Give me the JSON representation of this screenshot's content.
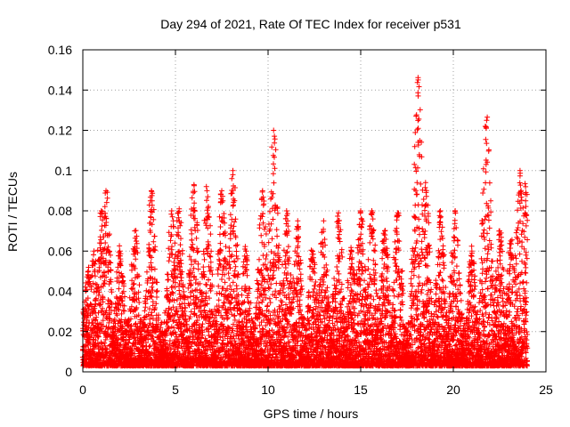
{
  "chart_data": {
    "type": "scatter",
    "title": "Day 294 of 2021, Rate Of TEC Index for receiver p531",
    "xlabel": "GPS time / hours",
    "ylabel": "ROTI / TECUs",
    "xlim": [
      0,
      25
    ],
    "ylim": [
      0,
      0.16
    ],
    "x_ticks": [
      0,
      5,
      10,
      15,
      20,
      25
    ],
    "x_tick_labels": [
      "0",
      "5",
      "10",
      "15",
      "20",
      "25"
    ],
    "y_ticks": [
      0,
      0.02,
      0.04,
      0.06,
      0.08,
      0.1,
      0.12,
      0.14,
      0.16
    ],
    "y_tick_labels": [
      "0",
      "0.02",
      "0.04",
      "0.06",
      "0.08",
      "0.1",
      "0.12",
      "0.14",
      "0.16"
    ],
    "grid": true,
    "legend": "none",
    "marker": "plus",
    "series_color": "#ff0000",
    "series": [
      {
        "x_range": [
          0,
          24
        ],
        "sample_interval_hours": 0.00833,
        "typical_range": [
          0.003,
          0.03
        ],
        "peaks": [
          {
            "x": 0.3,
            "y": 0.05
          },
          {
            "x": 0.6,
            "y": 0.06
          },
          {
            "x": 1.0,
            "y": 0.08
          },
          {
            "x": 1.25,
            "y": 0.09
          },
          {
            "x": 2.0,
            "y": 0.06
          },
          {
            "x": 2.8,
            "y": 0.07
          },
          {
            "x": 3.7,
            "y": 0.09
          },
          {
            "x": 4.8,
            "y": 0.08
          },
          {
            "x": 5.2,
            "y": 0.081
          },
          {
            "x": 6.0,
            "y": 0.093
          },
          {
            "x": 6.7,
            "y": 0.09
          },
          {
            "x": 7.5,
            "y": 0.09
          },
          {
            "x": 8.1,
            "y": 0.1
          },
          {
            "x": 8.8,
            "y": 0.06
          },
          {
            "x": 9.7,
            "y": 0.09
          },
          {
            "x": 10.3,
            "y": 0.12
          },
          {
            "x": 11.0,
            "y": 0.08
          },
          {
            "x": 11.6,
            "y": 0.075
          },
          {
            "x": 12.4,
            "y": 0.06
          },
          {
            "x": 13.0,
            "y": 0.075
          },
          {
            "x": 13.8,
            "y": 0.079
          },
          {
            "x": 14.5,
            "y": 0.06
          },
          {
            "x": 15.0,
            "y": 0.08
          },
          {
            "x": 15.6,
            "y": 0.08
          },
          {
            "x": 16.3,
            "y": 0.07
          },
          {
            "x": 17.0,
            "y": 0.079
          },
          {
            "x": 18.1,
            "y": 0.145
          },
          {
            "x": 18.5,
            "y": 0.094
          },
          {
            "x": 19.3,
            "y": 0.08
          },
          {
            "x": 20.1,
            "y": 0.08
          },
          {
            "x": 21.0,
            "y": 0.06
          },
          {
            "x": 21.8,
            "y": 0.125
          },
          {
            "x": 22.5,
            "y": 0.07
          },
          {
            "x": 23.1,
            "y": 0.065
          },
          {
            "x": 23.6,
            "y": 0.1
          },
          {
            "x": 23.9,
            "y": 0.092
          }
        ]
      }
    ]
  }
}
